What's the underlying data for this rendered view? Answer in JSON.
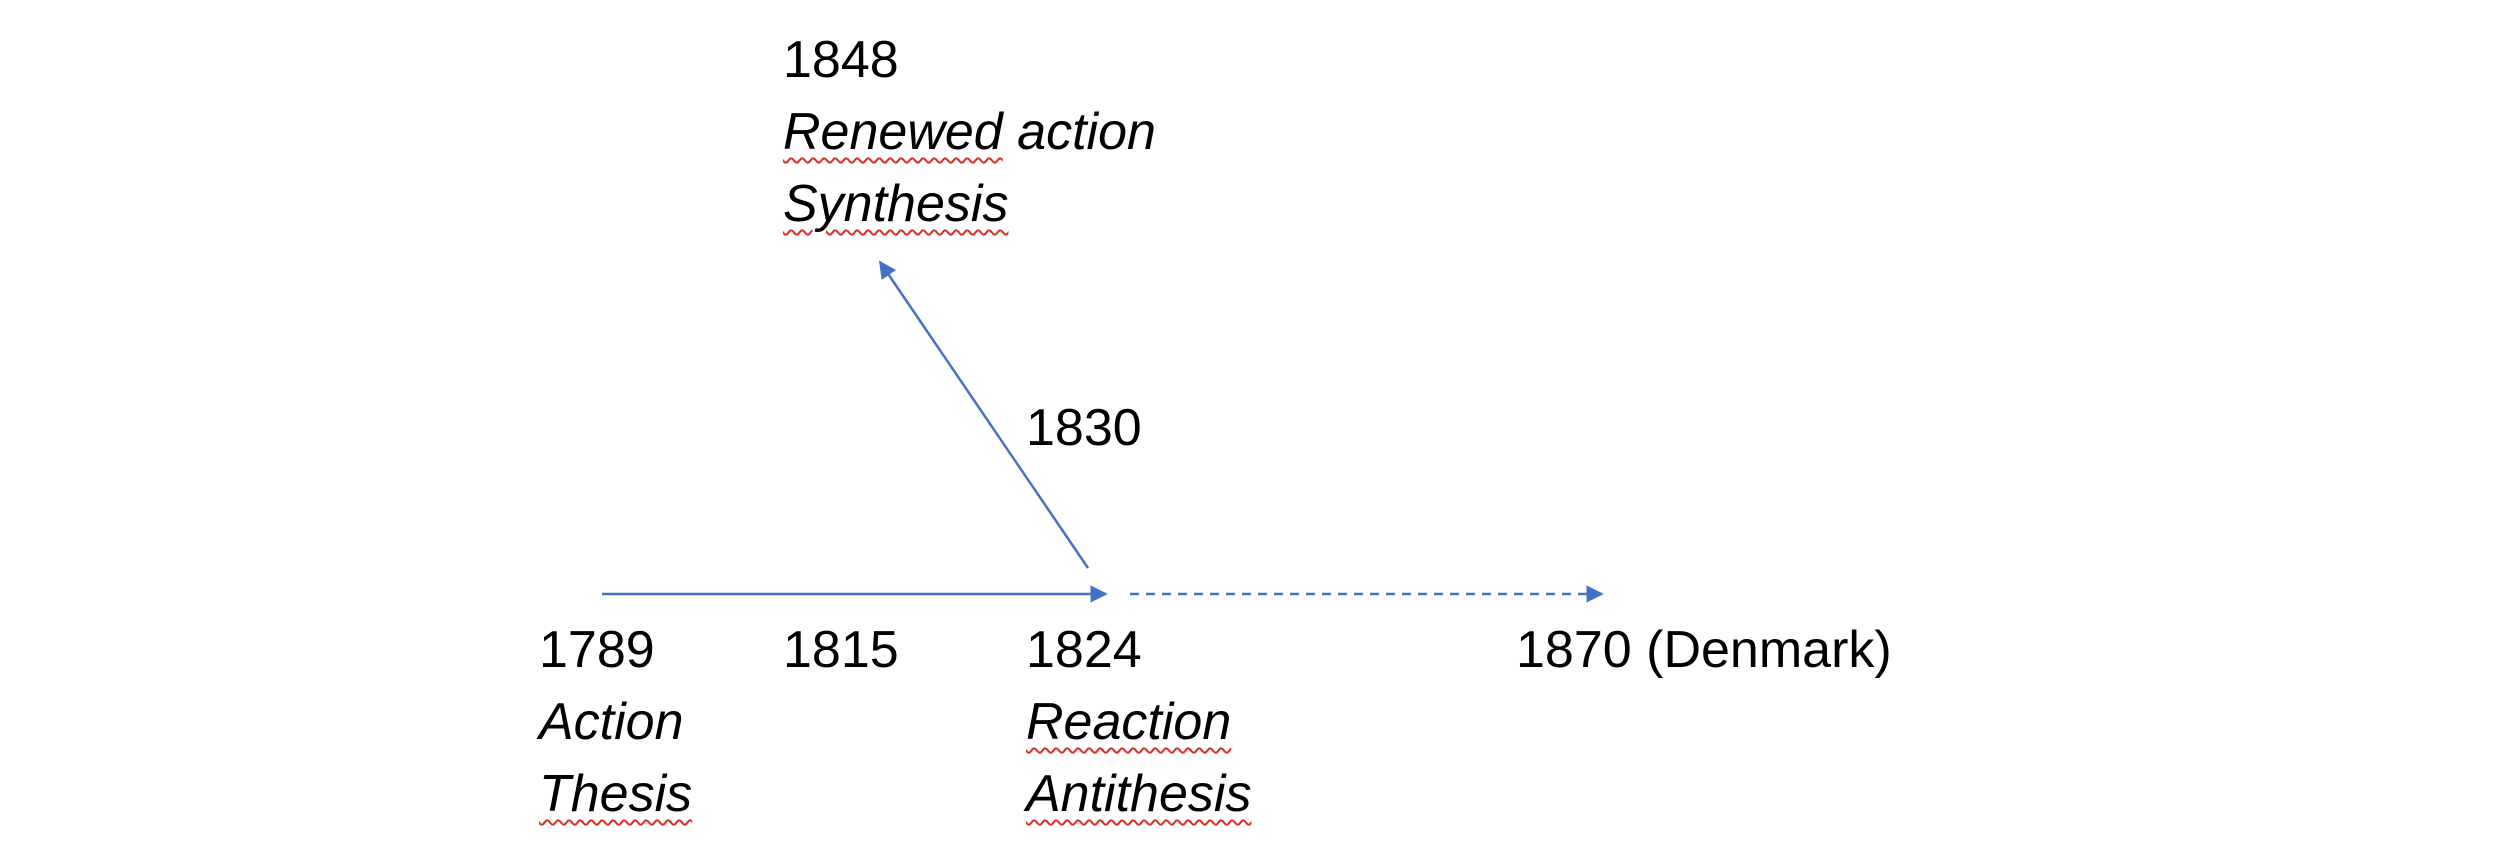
{
  "diagram": {
    "line_color": "#4472c4",
    "spellcheck_color": "#d93025",
    "nodes": {
      "n1848": {
        "year": "1848",
        "line1": "Renewed action",
        "line2": "Synthesis"
      },
      "n1830": {
        "year": "1830"
      },
      "n1789": {
        "year": "1789",
        "line1": "Action",
        "line2": "Thesis"
      },
      "n1815": {
        "year": "1815"
      },
      "n1824": {
        "year": "1824",
        "line1": "Reaction",
        "line2": "Antithesis"
      },
      "n1870": {
        "year": "1870 (Denmark)"
      }
    },
    "edges": [
      {
        "from": "1789",
        "to": "1824",
        "style": "solid"
      },
      {
        "from": "1824",
        "to": "1848",
        "style": "solid"
      },
      {
        "from": "1824",
        "to": "1870",
        "style": "dashed"
      }
    ]
  }
}
